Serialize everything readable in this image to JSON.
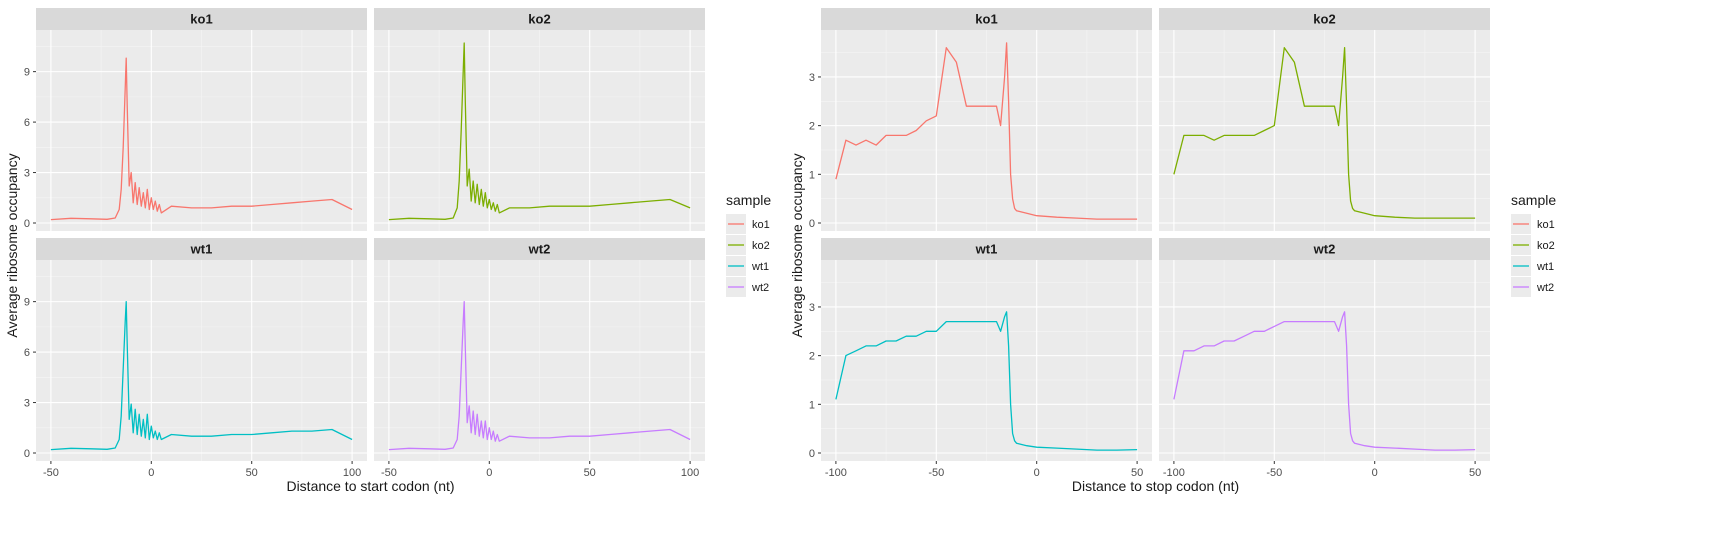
{
  "chart_data": [
    {
      "type": "line",
      "facets": [
        "ko1",
        "ko2",
        "wt1",
        "wt2"
      ],
      "xlabel": "Distance to start codon (nt)",
      "ylabel": "Average ribosome occupancy",
      "xlim": [
        -50,
        100
      ],
      "ylim": [
        0,
        11
      ],
      "xticks": [
        -50,
        0,
        50,
        100
      ],
      "yticks": [
        0,
        3,
        6,
        9
      ],
      "grid": true,
      "legend": {
        "title": "sample",
        "position": "right",
        "entries": [
          "ko1",
          "ko2",
          "wt1",
          "wt2"
        ]
      },
      "series": [
        {
          "name": "ko1",
          "color": "#F8766D",
          "x": [
            -50,
            -40,
            -30,
            -22,
            -18,
            -16,
            -15,
            -14,
            -13,
            -12.5,
            -12,
            -11,
            -10,
            -9,
            -8,
            -7,
            -6,
            -5,
            -4,
            -3,
            -2,
            -1,
            0,
            1,
            2,
            3,
            4,
            5,
            10,
            20,
            30,
            40,
            50,
            60,
            70,
            80,
            90,
            100
          ],
          "values": [
            0.2,
            0.28,
            0.25,
            0.22,
            0.3,
            0.8,
            2.0,
            4.5,
            8.0,
            9.8,
            7.0,
            2.2,
            3.0,
            1.2,
            2.4,
            1.1,
            2.1,
            1.0,
            1.8,
            0.9,
            2.0,
            0.8,
            1.5,
            0.8,
            1.3,
            0.7,
            1.1,
            0.6,
            1.0,
            0.9,
            0.9,
            1.0,
            1.0,
            1.1,
            1.2,
            1.3,
            1.4,
            0.8
          ]
        },
        {
          "name": "ko2",
          "color": "#7CAE00",
          "x": [
            -50,
            -40,
            -30,
            -22,
            -18,
            -16,
            -15,
            -14,
            -13,
            -12.5,
            -12,
            -11,
            -10,
            -9,
            -8,
            -7,
            -6,
            -5,
            -4,
            -3,
            -2,
            -1,
            0,
            1,
            2,
            3,
            4,
            5,
            10,
            20,
            30,
            40,
            50,
            60,
            70,
            80,
            90,
            100
          ],
          "values": [
            0.2,
            0.28,
            0.25,
            0.22,
            0.3,
            0.9,
            2.5,
            5.5,
            9.0,
            10.7,
            7.5,
            2.2,
            3.2,
            1.3,
            2.5,
            1.2,
            2.3,
            1.1,
            2.0,
            1.0,
            1.8,
            0.9,
            1.4,
            0.8,
            1.2,
            0.7,
            1.1,
            0.6,
            0.9,
            0.9,
            1.0,
            1.0,
            1.0,
            1.1,
            1.2,
            1.3,
            1.4,
            0.9
          ]
        },
        {
          "name": "wt1",
          "color": "#00BFC4",
          "x": [
            -50,
            -40,
            -30,
            -22,
            -18,
            -16,
            -15,
            -14,
            -13,
            -12.5,
            -12,
            -11,
            -10,
            -9,
            -8,
            -7,
            -6,
            -5,
            -4,
            -3,
            -2,
            -1,
            0,
            1,
            2,
            3,
            4,
            5,
            10,
            20,
            30,
            40,
            50,
            60,
            70,
            80,
            90,
            100
          ],
          "values": [
            0.2,
            0.28,
            0.25,
            0.22,
            0.3,
            0.8,
            2.2,
            5.0,
            7.8,
            9.0,
            6.5,
            2.0,
            2.9,
            1.2,
            2.6,
            1.1,
            2.3,
            1.0,
            2.0,
            0.9,
            2.3,
            0.8,
            1.6,
            0.9,
            1.3,
            0.8,
            1.2,
            0.8,
            1.1,
            1.0,
            1.0,
            1.1,
            1.1,
            1.2,
            1.3,
            1.3,
            1.4,
            0.8
          ]
        },
        {
          "name": "wt2",
          "color": "#C77CFF",
          "x": [
            -50,
            -40,
            -30,
            -22,
            -18,
            -16,
            -15,
            -14,
            -13,
            -12.5,
            -12,
            -11,
            -10,
            -9,
            -8,
            -7,
            -6,
            -5,
            -4,
            -3,
            -2,
            -1,
            0,
            1,
            2,
            3,
            4,
            5,
            10,
            20,
            30,
            40,
            50,
            60,
            70,
            80,
            90,
            100
          ],
          "values": [
            0.2,
            0.28,
            0.25,
            0.22,
            0.3,
            0.8,
            2.2,
            5.0,
            7.8,
            9.0,
            6.5,
            1.8,
            2.8,
            1.2,
            2.5,
            1.1,
            2.3,
            1.0,
            1.9,
            0.9,
            1.9,
            0.8,
            1.5,
            0.8,
            1.3,
            0.7,
            1.1,
            0.7,
            1.0,
            0.9,
            0.9,
            1.0,
            1.0,
            1.1,
            1.2,
            1.3,
            1.4,
            0.8
          ]
        }
      ]
    },
    {
      "type": "line",
      "facets": [
        "ko1",
        "ko2",
        "wt1",
        "wt2"
      ],
      "xlabel": "Distance to stop codon (nt)",
      "ylabel": "Average ribosome occupancy",
      "xlim": [
        -100,
        50
      ],
      "ylim": [
        0,
        3.8
      ],
      "xticks": [
        -100,
        -50,
        0,
        50
      ],
      "yticks": [
        0,
        1,
        2,
        3
      ],
      "grid": true,
      "legend": {
        "title": "sample",
        "position": "right",
        "entries": [
          "ko1",
          "ko2",
          "wt1",
          "wt2"
        ]
      },
      "series": [
        {
          "name": "ko1",
          "color": "#F8766D",
          "x": [
            -100,
            -95,
            -90,
            -85,
            -80,
            -75,
            -70,
            -65,
            -60,
            -55,
            -50,
            -45,
            -40,
            -35,
            -30,
            -25,
            -20,
            -18,
            -16,
            -15,
            -14,
            -13,
            -12,
            -11,
            -10,
            -5,
            0,
            10,
            20,
            30,
            40,
            50
          ],
          "values": [
            0.9,
            1.7,
            1.6,
            1.7,
            1.6,
            1.8,
            1.8,
            1.8,
            1.9,
            2.1,
            2.2,
            3.6,
            3.3,
            2.4,
            2.4,
            2.4,
            2.4,
            2.0,
            3.0,
            3.7,
            2.5,
            1.0,
            0.5,
            0.3,
            0.25,
            0.2,
            0.15,
            0.12,
            0.1,
            0.08,
            0.08,
            0.08
          ]
        },
        {
          "name": "ko2",
          "color": "#7CAE00",
          "x": [
            -100,
            -95,
            -90,
            -85,
            -80,
            -75,
            -70,
            -65,
            -60,
            -55,
            -50,
            -45,
            -40,
            -35,
            -30,
            -25,
            -20,
            -18,
            -16,
            -15,
            -14,
            -13,
            -12,
            -11,
            -10,
            -5,
            0,
            10,
            20,
            30,
            40,
            50
          ],
          "values": [
            1.0,
            1.8,
            1.8,
            1.8,
            1.7,
            1.8,
            1.8,
            1.8,
            1.8,
            1.9,
            2.0,
            3.6,
            3.3,
            2.4,
            2.4,
            2.4,
            2.4,
            2.0,
            3.0,
            3.6,
            2.4,
            1.0,
            0.45,
            0.3,
            0.25,
            0.2,
            0.15,
            0.12,
            0.1,
            0.1,
            0.1,
            0.1
          ]
        },
        {
          "name": "wt1",
          "color": "#00BFC4",
          "x": [
            -100,
            -95,
            -90,
            -85,
            -80,
            -75,
            -70,
            -65,
            -60,
            -55,
            -50,
            -45,
            -40,
            -35,
            -30,
            -25,
            -20,
            -18,
            -16,
            -15,
            -14,
            -13,
            -12,
            -11,
            -10,
            -5,
            0,
            10,
            20,
            30,
            40,
            50
          ],
          "values": [
            1.1,
            2.0,
            2.1,
            2.2,
            2.2,
            2.3,
            2.3,
            2.4,
            2.4,
            2.5,
            2.5,
            2.7,
            2.7,
            2.7,
            2.7,
            2.7,
            2.7,
            2.5,
            2.8,
            2.9,
            2.2,
            1.0,
            0.4,
            0.25,
            0.2,
            0.15,
            0.12,
            0.1,
            0.08,
            0.06,
            0.06,
            0.07
          ]
        },
        {
          "name": "wt2",
          "color": "#C77CFF",
          "x": [
            -100,
            -95,
            -90,
            -85,
            -80,
            -75,
            -70,
            -65,
            -60,
            -55,
            -50,
            -45,
            -40,
            -35,
            -30,
            -25,
            -20,
            -18,
            -16,
            -15,
            -14,
            -13,
            -12,
            -11,
            -10,
            -5,
            0,
            10,
            20,
            30,
            40,
            50
          ],
          "values": [
            1.1,
            2.1,
            2.1,
            2.2,
            2.2,
            2.3,
            2.3,
            2.4,
            2.5,
            2.5,
            2.6,
            2.7,
            2.7,
            2.7,
            2.7,
            2.7,
            2.7,
            2.5,
            2.8,
            2.9,
            2.2,
            1.0,
            0.4,
            0.25,
            0.2,
            0.15,
            0.12,
            0.1,
            0.08,
            0.06,
            0.06,
            0.07
          ]
        }
      ]
    }
  ]
}
